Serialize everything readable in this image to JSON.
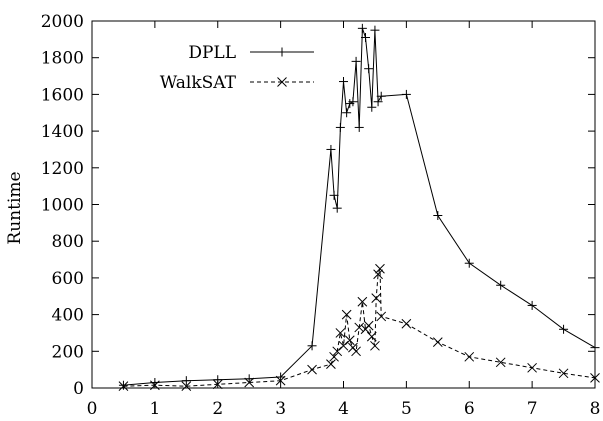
{
  "chart_data": {
    "type": "line",
    "title": "",
    "xlabel": "",
    "ylabel": "Runtime",
    "xlim": [
      0,
      8
    ],
    "ylim": [
      0,
      2000
    ],
    "xticks": [
      "0",
      "1",
      "2",
      "3",
      "4",
      "5",
      "6",
      "7",
      "8"
    ],
    "yticks": [
      "0",
      "200",
      "400",
      "600",
      "800",
      "1000",
      "1200",
      "1400",
      "1600",
      "1800",
      "2000"
    ],
    "grid": false,
    "legend_position": "top-left",
    "series": [
      {
        "name": "DPLL",
        "marker": "plus",
        "line_style": "solid",
        "color": "#000000",
        "points": [
          [
            0.5,
            15
          ],
          [
            1.0,
            30
          ],
          [
            1.5,
            40
          ],
          [
            2.0,
            45
          ],
          [
            2.5,
            50
          ],
          [
            3.0,
            60
          ],
          [
            3.5,
            230
          ],
          [
            3.8,
            1300
          ],
          [
            3.85,
            1050
          ],
          [
            3.9,
            980
          ],
          [
            3.95,
            1420
          ],
          [
            4.0,
            1670
          ],
          [
            4.05,
            1500
          ],
          [
            4.1,
            1550
          ],
          [
            4.15,
            1560
          ],
          [
            4.2,
            1780
          ],
          [
            4.25,
            1420
          ],
          [
            4.3,
            1960
          ],
          [
            4.35,
            1910
          ],
          [
            4.4,
            1740
          ],
          [
            4.45,
            1530
          ],
          [
            4.5,
            1950
          ],
          [
            4.55,
            1560
          ],
          [
            4.6,
            1590
          ],
          [
            5.0,
            1600
          ],
          [
            5.5,
            940
          ],
          [
            6.0,
            680
          ],
          [
            6.5,
            560
          ],
          [
            7.0,
            450
          ],
          [
            7.5,
            320
          ],
          [
            8.0,
            220
          ]
        ]
      },
      {
        "name": "WalkSAT",
        "marker": "cross",
        "line_style": "dashed",
        "color": "#000000",
        "points": [
          [
            0.5,
            10
          ],
          [
            1.0,
            15
          ],
          [
            1.5,
            10
          ],
          [
            2.0,
            20
          ],
          [
            2.5,
            30
          ],
          [
            3.0,
            40
          ],
          [
            3.5,
            100
          ],
          [
            3.8,
            130
          ],
          [
            3.85,
            170
          ],
          [
            3.9,
            200
          ],
          [
            3.95,
            300
          ],
          [
            4.0,
            230
          ],
          [
            4.05,
            400
          ],
          [
            4.1,
            260
          ],
          [
            4.15,
            220
          ],
          [
            4.2,
            200
          ],
          [
            4.25,
            330
          ],
          [
            4.3,
            470
          ],
          [
            4.35,
            320
          ],
          [
            4.4,
            340
          ],
          [
            4.45,
            280
          ],
          [
            4.5,
            230
          ],
          [
            4.52,
            490
          ],
          [
            4.55,
            620
          ],
          [
            4.58,
            650
          ],
          [
            4.6,
            390
          ],
          [
            5.0,
            350
          ],
          [
            5.5,
            250
          ],
          [
            6.0,
            170
          ],
          [
            6.5,
            140
          ],
          [
            7.0,
            110
          ],
          [
            7.5,
            80
          ],
          [
            8.0,
            55
          ]
        ]
      }
    ]
  }
}
